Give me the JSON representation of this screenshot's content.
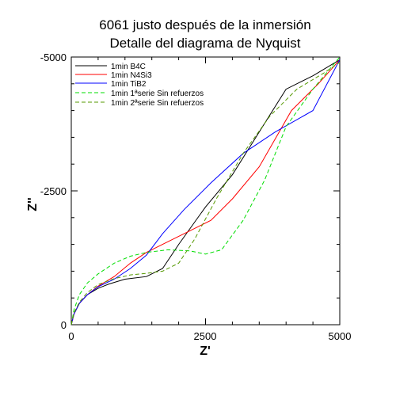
{
  "chart_data": {
    "type": "line",
    "title": [
      "6061 justo después de la inmersión",
      "Detalle del diagrama de Nyquist"
    ],
    "xlabel": "Z'",
    "ylabel": "Z''",
    "xlim": [
      0,
      5000
    ],
    "ylim": [
      0,
      -5000
    ],
    "xticks": [
      "0",
      "2500",
      "5000"
    ],
    "yticks": [
      "0",
      "-2500",
      "-5000"
    ],
    "grid": false,
    "legend_position": "top-left",
    "series": [
      {
        "name": "1min B4C",
        "color": "#000000",
        "dash": "solid",
        "x": [
          0,
          50,
          150,
          300,
          500,
          700,
          1000,
          1400,
          1700,
          2000,
          2500,
          3000,
          3500,
          4000,
          4500,
          5000
        ],
        "y": [
          0,
          -200,
          -400,
          -560,
          -680,
          -760,
          -850,
          -900,
          -1050,
          -1500,
          -2200,
          -2800,
          -3600,
          -4400,
          -4650,
          -4950
        ]
      },
      {
        "name": "1min N4Si3",
        "color": "#ff0000",
        "dash": "solid",
        "x": [
          0,
          50,
          150,
          300,
          500,
          800,
          1100,
          1400,
          1800,
          2200,
          2600,
          3000,
          3500,
          4100,
          4600,
          5000
        ],
        "y": [
          0,
          -200,
          -400,
          -560,
          -720,
          -900,
          -1150,
          -1350,
          -1550,
          -1750,
          -1950,
          -2350,
          -2950,
          -4000,
          -4500,
          -4950
        ]
      },
      {
        "name": "1min TiB2",
        "color": "#0000ff",
        "dash": "solid",
        "x": [
          0,
          50,
          150,
          300,
          500,
          800,
          1100,
          1400,
          1700,
          2100,
          2600,
          3200,
          3800,
          4500,
          5000
        ],
        "y": [
          0,
          -200,
          -400,
          -560,
          -710,
          -850,
          -1050,
          -1300,
          -1700,
          -2150,
          -2650,
          -3200,
          -3600,
          -4000,
          -4950
        ]
      },
      {
        "name": "1min 1ªserie Sin refuerzos",
        "color": "#00dd00",
        "dash": "dashed",
        "x": [
          0,
          50,
          150,
          300,
          500,
          800,
          1100,
          1400,
          1800,
          2200,
          2500,
          2800,
          3200,
          3600,
          4000,
          4500,
          5000
        ],
        "y": [
          0,
          -280,
          -560,
          -780,
          -950,
          -1150,
          -1280,
          -1350,
          -1400,
          -1380,
          -1320,
          -1400,
          -1950,
          -2700,
          -3700,
          -4400,
          -5000
        ]
      },
      {
        "name": "1min 2ªserie Sin refuerzos",
        "color": "#559900",
        "dash": "dashed",
        "x": [
          0,
          50,
          150,
          300,
          500,
          800,
          1100,
          1400,
          1700,
          2000,
          2300,
          2700,
          3200,
          3700,
          4200,
          4700,
          5000
        ],
        "y": [
          0,
          -220,
          -420,
          -600,
          -750,
          -860,
          -930,
          -960,
          -1000,
          -1150,
          -1600,
          -2350,
          -3200,
          -3900,
          -4400,
          -4700,
          -4900
        ]
      }
    ]
  }
}
